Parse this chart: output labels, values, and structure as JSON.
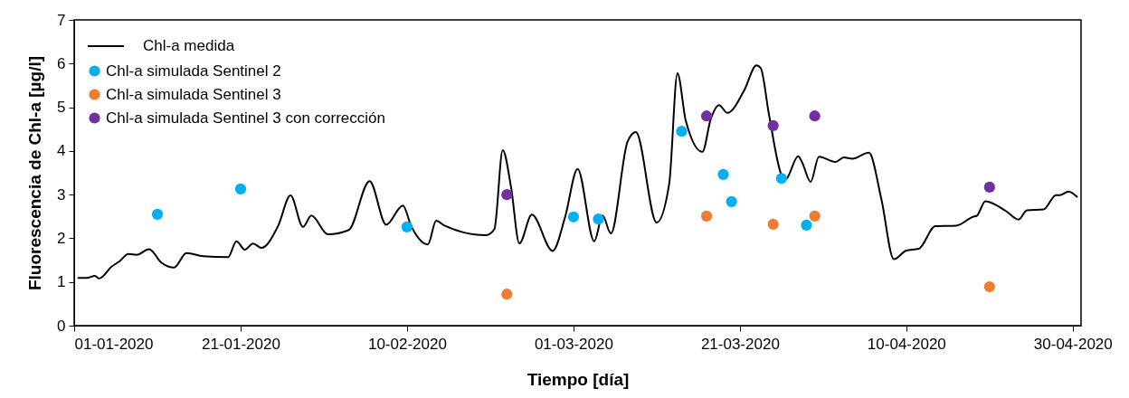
{
  "chart_data": {
    "type": "line",
    "xlabel": "Tiempo [día]",
    "ylabel": "Fluorescencia de Chl-a [µg/l]",
    "xlim": [
      "2020-01-01",
      "2020-05-01"
    ],
    "xticks": [
      {
        "value": "2020-01-01",
        "label": "01-01-2020"
      },
      {
        "value": "2020-01-21",
        "label": "21-01-2020"
      },
      {
        "value": "2020-02-10",
        "label": "10-02-2020"
      },
      {
        "value": "2020-03-01",
        "label": "01-03-2020"
      },
      {
        "value": "2020-03-21",
        "label": "21-03-2020"
      },
      {
        "value": "2020-04-10",
        "label": "10-04-2020"
      },
      {
        "value": "2020-04-30",
        "label": "30-04-2020"
      }
    ],
    "ylim": [
      0,
      7
    ],
    "yticks": [
      0,
      1,
      2,
      3,
      4,
      5,
      6,
      7
    ],
    "grid": false,
    "legend": "top left",
    "series": [
      {
        "name": "Chl-a medida",
        "type": "line",
        "color": "#000000",
        "marker": "none",
        "line_style": "solid",
        "x": [
          "2020-01-01T12:00",
          "2020-01-02T12:00",
          "2020-01-03T12:00",
          "2020-01-04",
          "2020-01-05T12:00",
          "2020-01-06T12:00",
          "2020-01-07T12:00",
          "2020-01-08T12:00",
          "2020-01-10",
          "2020-01-11T12:00",
          "2020-01-13",
          "2020-01-14T12:00",
          "2020-01-16T12:00",
          "2020-01-19T12:00",
          "2020-01-20T12:00",
          "2020-01-21T12:00",
          "2020-01-22T12:00",
          "2020-01-23T12:00",
          "2020-01-25T12:00",
          "2020-01-27",
          "2020-01-28T12:00",
          "2020-01-29T12:00",
          "2020-01-31T12:00",
          "2020-02-03",
          "2020-02-05T12:00",
          "2020-02-07T12:00",
          "2020-02-09T12:00",
          "2020-02-10T12:00",
          "2020-02-12T12:00",
          "2020-02-13T12:00",
          "2020-02-14T12:00",
          "2020-02-19T12:00",
          "2020-02-20T12:00",
          "2020-02-21T12:00",
          "2020-02-22T12:00",
          "2020-02-23T12:00",
          "2020-02-25",
          "2020-02-27T12:00",
          "2020-02-29",
          "2020-03-01T12:00",
          "2020-03-03T12:00",
          "2020-03-04T12:00",
          "2020-03-05T12:00",
          "2020-03-07T12:00",
          "2020-03-08T12:00",
          "2020-03-11",
          "2020-03-12T12:00",
          "2020-03-13T12:00",
          "2020-03-14T12:00",
          "2020-03-16T12:00",
          "2020-03-17T12:00",
          "2020-03-18T12:00",
          "2020-03-19T12:00",
          "2020-03-21T12:00",
          "2020-03-23",
          "2020-03-23T12:00",
          "2020-03-24T12:00",
          "2020-03-26",
          "2020-03-26T12:00",
          "2020-03-28",
          "2020-03-28T12:00",
          "2020-03-29T12:00",
          "2020-03-30T12:00",
          "2020-04-01T12:00",
          "2020-04-02T12:00",
          "2020-04-03T12:00",
          "2020-04-05T12:00",
          "2020-04-07",
          "2020-04-08T12:00",
          "2020-04-10",
          "2020-04-11T12:00",
          "2020-04-13T12:00",
          "2020-04-16",
          "2020-04-18",
          "2020-04-18T12:00",
          "2020-04-19T12:00",
          "2020-04-22",
          "2020-04-23T12:00",
          "2020-04-24T12:00",
          "2020-04-26T12:00",
          "2020-04-28",
          "2020-04-28T12:00",
          "2020-04-29T12:00",
          "2020-04-30T12:00"
        ],
        "values": [
          1.09,
          1.09,
          1.14,
          1.08,
          1.35,
          1.48,
          1.64,
          1.62,
          1.75,
          1.44,
          1.33,
          1.66,
          1.59,
          1.57,
          1.93,
          1.74,
          1.88,
          1.78,
          2.28,
          2.98,
          2.26,
          2.52,
          2.09,
          2.19,
          3.31,
          2.31,
          2.75,
          2.28,
          1.86,
          2.4,
          2.29,
          2.07,
          2.21,
          4.02,
          3.17,
          1.88,
          2.54,
          1.71,
          2.49,
          3.59,
          1.93,
          2.52,
          2.11,
          4.21,
          4.43,
          2.36,
          3.24,
          5.78,
          4.69,
          3.98,
          4.73,
          5.05,
          4.87,
          5.38,
          5.96,
          5.9,
          4.83,
          3.45,
          3.35,
          3.88,
          3.73,
          3.29,
          3.87,
          3.75,
          3.85,
          3.82,
          3.96,
          2.9,
          1.52,
          1.72,
          1.76,
          2.28,
          2.29,
          2.49,
          2.52,
          2.85,
          2.62,
          2.43,
          2.64,
          2.66,
          2.99,
          2.99,
          3.07,
          2.95
        ]
      },
      {
        "name": "Chl-a simulada Sentinel 2",
        "type": "scatter",
        "color": "#00b0f0",
        "marker": "circle",
        "x": [
          "2020-01-11",
          "2020-01-21",
          "2020-02-10",
          "2020-03-01",
          "2020-03-04",
          "2020-03-14",
          "2020-03-19",
          "2020-03-20",
          "2020-03-26",
          "2020-03-29"
        ],
        "values": [
          2.55,
          3.13,
          2.26,
          2.49,
          2.44,
          4.45,
          3.46,
          2.84,
          3.37,
          2.3
        ]
      },
      {
        "name": "Chl-a simulada Sentinel 3",
        "type": "scatter",
        "color": "#ed7d31",
        "marker": "circle",
        "x": [
          "2020-02-22",
          "2020-03-17",
          "2020-03-25",
          "2020-03-30",
          "2020-04-20"
        ],
        "values": [
          0.72,
          2.51,
          2.32,
          2.51,
          0.89
        ]
      },
      {
        "name": "Chl-a simulada Sentinel 3 con corrección",
        "type": "scatter",
        "color": "#7030a0",
        "marker": "circle",
        "x": [
          "2020-02-22",
          "2020-03-17",
          "2020-03-25",
          "2020-03-30",
          "2020-04-20"
        ],
        "values": [
          3.0,
          4.8,
          4.58,
          4.8,
          3.17
        ]
      }
    ]
  }
}
